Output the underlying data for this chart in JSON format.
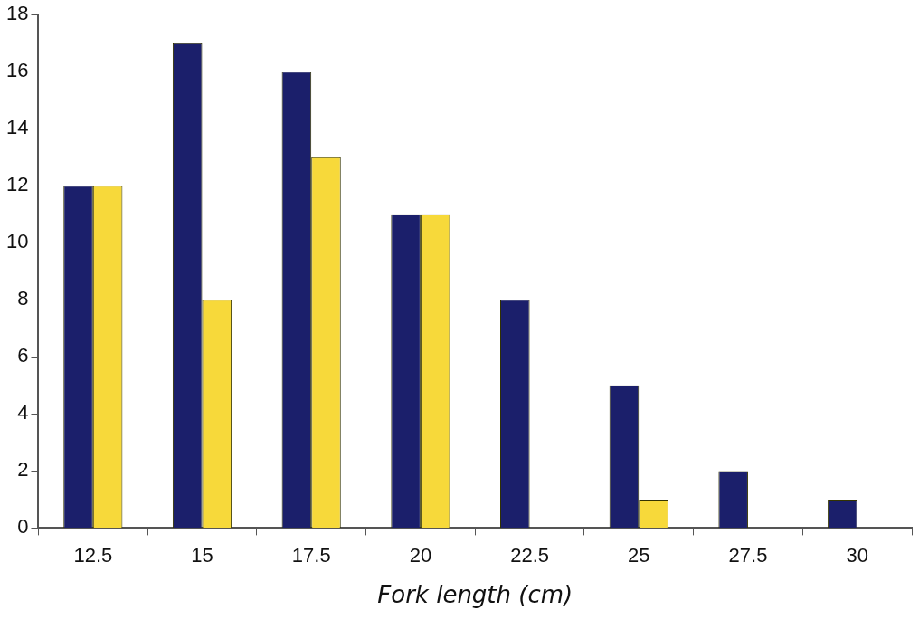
{
  "chart_data": {
    "type": "bar",
    "xlabel": "Fork length (cm)",
    "categories": [
      "12.5",
      "15",
      "17.5",
      "20",
      "22.5",
      "25",
      "27.5",
      "30"
    ],
    "series": [
      {
        "color": "#1b1f6b",
        "values": [
          12,
          17,
          16,
          11,
          8,
          5,
          2,
          1
        ]
      },
      {
        "color": "#f7d93a",
        "values": [
          12,
          8,
          13,
          11,
          null,
          1,
          null,
          null
        ]
      }
    ],
    "ylim": [
      0,
      18
    ],
    "yticks": [
      0,
      2,
      4,
      6,
      8,
      10,
      12,
      14,
      16,
      18
    ],
    "grid": false,
    "legend": false
  }
}
